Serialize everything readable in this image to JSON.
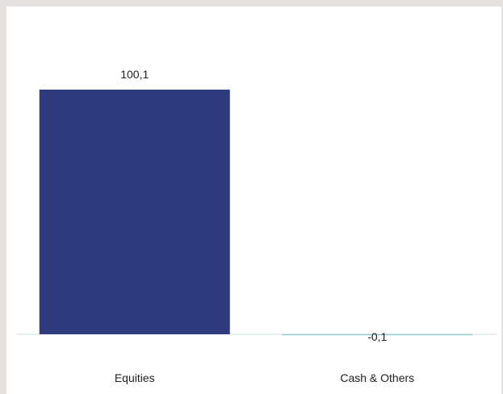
{
  "chart_data": {
    "type": "bar",
    "categories": [
      "Equities",
      "Cash & Others"
    ],
    "values": [
      100.1,
      -0.1
    ],
    "value_labels": [
      "100,1",
      "-0,1"
    ],
    "ylim": [
      -0.3,
      110
    ],
    "grid": false,
    "colors": {
      "bar_primary": "#2e3c7e",
      "bar_secondary": "#8fc9c4",
      "baseline": "#cfe3e3",
      "panel_background": "#ffffff",
      "page_background": "#e5e1de"
    }
  }
}
